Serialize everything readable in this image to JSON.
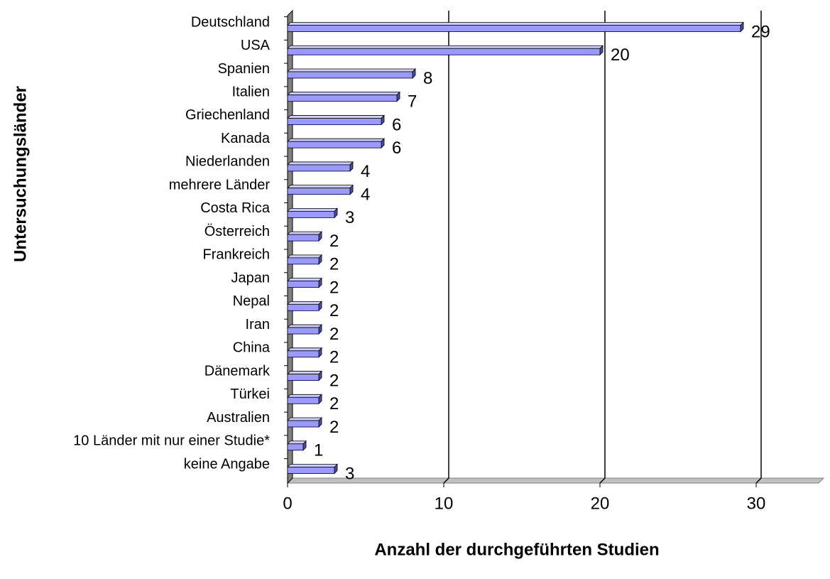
{
  "chart_data": {
    "type": "bar",
    "orientation": "horizontal",
    "x_label": "Anzahl der durchgeführten Studien",
    "y_label": "Untersuchungsländer",
    "categories": [
      "Deutschland",
      "USA",
      "Spanien",
      "Italien",
      "Griechenland",
      "Kanada",
      "Niederlanden",
      "mehrere Länder",
      "Costa Rica",
      "Österreich",
      "Frankreich",
      "Japan",
      "Nepal",
      "Iran",
      "China",
      "Dänemark",
      "Türkei",
      "Australien",
      "10 Länder mit nur einer Studie*",
      "keine Angabe"
    ],
    "values": [
      29,
      20,
      8,
      7,
      6,
      6,
      4,
      4,
      3,
      2,
      2,
      2,
      2,
      2,
      2,
      2,
      2,
      2,
      1,
      3
    ],
    "color": "#9999ff",
    "xlim": [
      0,
      34
    ],
    "xticks": [
      0,
      10,
      20,
      30
    ],
    "grid": true
  }
}
